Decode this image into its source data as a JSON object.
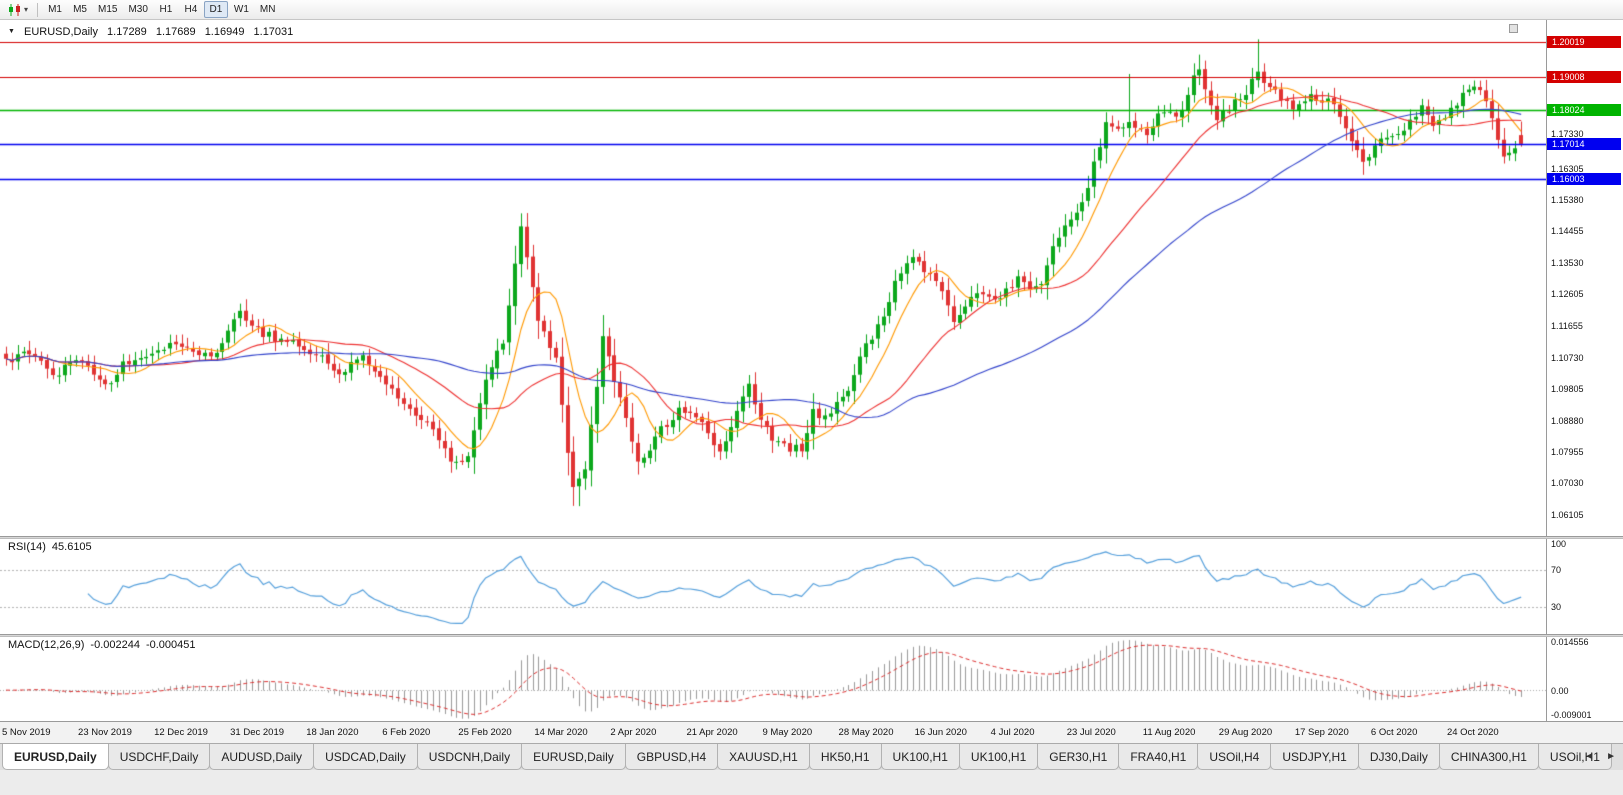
{
  "toolbar": {
    "timeframes": [
      "M1",
      "M5",
      "M15",
      "M30",
      "H1",
      "H4",
      "D1",
      "W1",
      "MN"
    ],
    "active_timeframe": "D1",
    "caret": "▾"
  },
  "chart_data": {
    "type": "candlestick",
    "title": "EURUSD,Daily",
    "title_marker": "▼",
    "ohlc_display": [
      "1.17289",
      "1.17689",
      "1.16949",
      "1.17031"
    ],
    "n_candles": 260,
    "x_ticks_every_n_candles": 13,
    "x_tick_labels": [
      "5 Nov 2019",
      "23 Nov 2019",
      "12 Dec 2019",
      "31 Dec 2019",
      "18 Jan 2020",
      "6 Feb 2020",
      "25 Feb 2020",
      "14 Mar 2020",
      "2 Apr 2020",
      "21 Apr 2020",
      "9 May 2020",
      "28 May 2020",
      "16 Jun 2020",
      "4 Jul 2020",
      "23 Jul 2020",
      "11 Aug 2020",
      "29 Aug 2020",
      "17 Sep 2020",
      "6 Oct 2020",
      "24 Oct 2020"
    ],
    "y_axis_ticks": [
      "1.17330",
      "1.16305",
      "1.15380",
      "1.14455",
      "1.13530",
      "1.12605",
      "1.11655",
      "1.10730",
      "1.09805",
      "1.08880",
      "1.07955",
      "1.07030",
      "1.06105"
    ],
    "y_range": [
      1.0548,
      1.2068
    ],
    "price_keyframes": [
      [
        0,
        1.1073
      ],
      [
        4,
        1.11
      ],
      [
        7,
        1.102
      ],
      [
        12,
        1.1062
      ],
      [
        18,
        1.1018
      ],
      [
        22,
        1.108
      ],
      [
        27,
        1.113
      ],
      [
        31,
        1.11
      ],
      [
        36,
        1.1085
      ],
      [
        40,
        1.1212
      ],
      [
        43,
        1.117
      ],
      [
        47,
        1.112
      ],
      [
        52,
        1.1095
      ],
      [
        57,
        1.1023
      ],
      [
        61,
        1.1085
      ],
      [
        67,
        1.0945
      ],
      [
        72,
        1.088
      ],
      [
        76,
        1.0786
      ],
      [
        79,
        1.0805
      ],
      [
        82,
        1.1026
      ],
      [
        85,
        1.1135
      ],
      [
        88,
        1.145
      ],
      [
        91,
        1.1185
      ],
      [
        94,
        1.105
      ],
      [
        97,
        1.069
      ],
      [
        99,
        1.077
      ],
      [
        102,
        1.114
      ],
      [
        105,
        1.096
      ],
      [
        108,
        1.079
      ],
      [
        112,
        1.086
      ],
      [
        115,
        1.091
      ],
      [
        119,
        1.0875
      ],
      [
        122,
        1.082
      ],
      [
        127,
        1.098
      ],
      [
        131,
        1.0834
      ],
      [
        136,
        1.0805
      ],
      [
        138,
        1.0915
      ],
      [
        141,
        1.089
      ],
      [
        144,
        1.098
      ],
      [
        148,
        1.1135
      ],
      [
        152,
        1.129
      ],
      [
        155,
        1.137
      ],
      [
        158,
        1.13
      ],
      [
        162,
        1.1175
      ],
      [
        165,
        1.125
      ],
      [
        169,
        1.1234
      ],
      [
        173,
        1.131
      ],
      [
        177,
        1.128
      ],
      [
        179,
        1.14
      ],
      [
        184,
        1.1525
      ],
      [
        188,
        1.175
      ],
      [
        192,
        1.178
      ],
      [
        195,
        1.174
      ],
      [
        197,
        1.1785
      ],
      [
        200,
        1.179
      ],
      [
        204,
        1.193
      ],
      [
        207,
        1.1795
      ],
      [
        210,
        1.183
      ],
      [
        214,
        1.191
      ],
      [
        217,
        1.184
      ],
      [
        220,
        1.18
      ],
      [
        226,
        1.1845
      ],
      [
        228,
        1.177
      ],
      [
        232,
        1.163
      ],
      [
        236,
        1.172
      ],
      [
        242,
        1.1825
      ],
      [
        244,
        1.1745
      ],
      [
        250,
        1.186
      ],
      [
        252,
        1.186
      ],
      [
        254,
        1.1795
      ],
      [
        256,
        1.1675
      ],
      [
        259,
        1.1703
      ]
    ],
    "forced_wicks": [
      {
        "i": 88,
        "h": 1.1495
      },
      {
        "i": 97,
        "l": 1.0656
      },
      {
        "i": 98,
        "l": 1.0636
      },
      {
        "i": 192,
        "h": 1.1909
      },
      {
        "i": 204,
        "h": 1.1966
      },
      {
        "i": 214,
        "h": 1.2011
      },
      {
        "i": 232,
        "l": 1.1612
      }
    ],
    "last_candle": [
      1.17289,
      1.17689,
      1.16949,
      1.17031
    ],
    "horizontal_lines": [
      {
        "price": 1.20019,
        "label": "1.20019",
        "color": "#d40000",
        "width": 1.2
      },
      {
        "price": 1.19008,
        "label": "1.19008",
        "color": "#d40000",
        "width": 1.2
      },
      {
        "price": 1.18024,
        "label": "1.18024",
        "color": "#00b400",
        "width": 1.6
      },
      {
        "price": 1.17014,
        "label": "1.17014",
        "color": "#0000f0",
        "width": 1.6
      },
      {
        "price": 1.16003,
        "label": "1.16003",
        "color": "#0000f0",
        "width": 1.6
      }
    ],
    "moving_averages": [
      {
        "period": 8,
        "color": "#ff9900"
      },
      {
        "period": 24,
        "color": "#ee3030"
      },
      {
        "period": 55,
        "color": "#3344cc"
      }
    ],
    "colors": {
      "up": "#0ca81c",
      "down": "#e03333",
      "background": "#ffffff"
    },
    "seed": 77,
    "rsi_panel": {
      "label": "RSI(14)",
      "value": "45.6105",
      "period": 14,
      "scale_labels": [
        "100",
        "70",
        "30"
      ],
      "levels": [
        70,
        30
      ],
      "line_color": "#56a0dc"
    },
    "macd_panel": {
      "label": "MACD(12,26,9)",
      "value_macd": "-0.002244",
      "value_signal": "-0.000451",
      "fast": 12,
      "slow": 26,
      "signal": 9,
      "scale_labels": [
        "0.014556",
        "0.00",
        "-0.009001"
      ],
      "histogram_color": "#9a9a9a",
      "signal_color": "#dd3030"
    }
  },
  "tab_bar": {
    "tabs": [
      "EURUSD,Daily",
      "USDCHF,Daily",
      "AUDUSD,Daily",
      "USDCAD,Daily",
      "USDCNH,Daily",
      "EURUSD,Daily",
      "GBPUSD,H4",
      "XAUUSD,H1",
      "HK50,H1",
      "UK100,H1",
      "UK100,H1",
      "GER30,H1",
      "FRA40,H1",
      "USOil,H4",
      "USDJPY,H1",
      "DJ30,Daily",
      "CHINA300,H1",
      "USOil,H1"
    ],
    "active_index": 0,
    "scroll_left": "◄",
    "scroll_right": "►"
  }
}
